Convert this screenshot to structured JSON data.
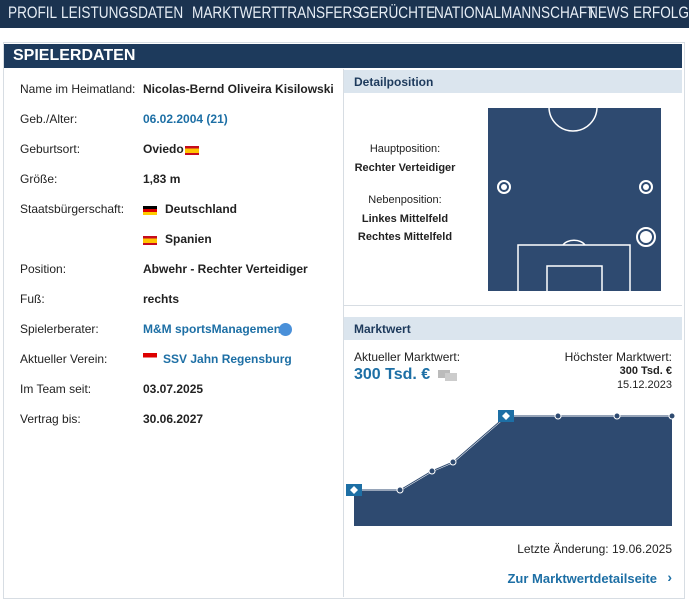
{
  "nav": {
    "items": [
      "PROFIL",
      "LEISTUNGSDATEN",
      "MARKTWERT",
      "TRANSFERS",
      "GERÜCHTE",
      "NATIONALMANNSCHAFT",
      "NEWS",
      "ERFOLGE"
    ]
  },
  "section": {
    "title": "SPIELERDATEN"
  },
  "fields": [
    {
      "label": "Name im Heimatland:",
      "value": "Nicolas-Bernd Oliveira Kisilowski"
    },
    {
      "label": "Geb./Alter:",
      "value": "06.02.2004 (21)"
    },
    {
      "label": "Geburtsort:",
      "value": "Oviedo"
    },
    {
      "label": "Größe:",
      "value": "1,83 m"
    },
    {
      "label": "Staatsbürgerschaft:",
      "values": [
        "Deutschland",
        "Spanien"
      ]
    },
    {
      "label": "Position:",
      "value": "Abwehr - Rechter Verteidiger"
    },
    {
      "label": "Fuß:",
      "value": "rechts"
    },
    {
      "label": "Spielerberater:",
      "value": "M&M sportsManagement"
    },
    {
      "label": "Aktueller Verein:",
      "value": "SSV Jahn Regensburg"
    },
    {
      "label": "Im Team seit:",
      "value": "03.07.2025"
    },
    {
      "label": "Vertrag bis:",
      "value": "30.06.2027"
    }
  ],
  "detail": {
    "heading": "Detailposition",
    "main_label": "Hauptposition:",
    "main_value": "Rechter Verteidiger",
    "secondary_label": "Nebenposition:",
    "secondary_values": [
      "Linkes Mittelfeld",
      "Rechtes Mittelfeld"
    ]
  },
  "market": {
    "heading": "Marktwert",
    "current_label": "Aktueller Marktwert:",
    "current_value": "300 Tsd. €",
    "highest_label": "Höchster Marktwert:",
    "highest_value": "300 Tsd. €",
    "highest_date": "15.12.2023",
    "last_change": "Letzte Änderung: 19.06.2025",
    "link": "Zur Marktwertdetailseite"
  }
}
